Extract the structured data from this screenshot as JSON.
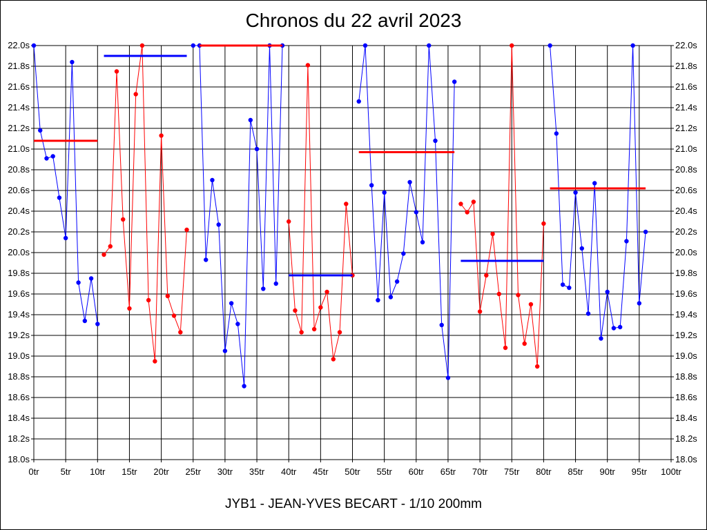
{
  "chart_data": {
    "type": "line",
    "title": "Chronos du 22 avril 2023",
    "subtitle": "JYB1 - JEAN-YVES BECART - 1/10 200mm",
    "xlabel": "",
    "ylabel": "",
    "xlim": [
      0,
      100
    ],
    "ylim": [
      18.0,
      22.0
    ],
    "grid": true,
    "x_ticks": [
      "0tr",
      "5tr",
      "10tr",
      "15tr",
      "20tr",
      "25tr",
      "30tr",
      "35tr",
      "40tr",
      "45tr",
      "50tr",
      "55tr",
      "60tr",
      "65tr",
      "70tr",
      "75tr",
      "80tr",
      "85tr",
      "90tr",
      "95tr",
      "100tr"
    ],
    "y_ticks": [
      "18.0s",
      "18.2s",
      "18.4s",
      "18.6s",
      "18.8s",
      "19.0s",
      "19.2s",
      "19.4s",
      "19.6s",
      "19.8s",
      "20.0s",
      "20.2s",
      "20.4s",
      "20.6s",
      "20.8s",
      "21.0s",
      "21.2s",
      "21.4s",
      "21.6s",
      "21.8s",
      "22.0s"
    ],
    "series": [
      {
        "color": "#0000ff",
        "x": [
          0,
          1,
          2,
          3,
          4,
          5,
          6,
          7,
          8,
          9,
          10
        ],
        "y": [
          22.0,
          21.18,
          20.91,
          20.93,
          20.53,
          20.14,
          21.84,
          19.71,
          19.34,
          19.75,
          19.31
        ],
        "average": 21.08
      },
      {
        "color": "#ff0000",
        "x": [
          11,
          12,
          13,
          14,
          15,
          16,
          17,
          18,
          19,
          20,
          21,
          22,
          23,
          24
        ],
        "y": [
          19.98,
          20.06,
          21.75,
          20.32,
          19.46,
          21.53,
          22.0,
          19.54,
          18.95,
          21.13,
          19.58,
          19.39,
          19.23,
          20.22
        ],
        "average": 21.9
      },
      {
        "color": "#0000ff",
        "x": [
          25,
          26,
          27,
          28,
          29,
          30,
          31,
          32,
          33,
          34,
          35,
          36,
          37,
          38,
          39
        ],
        "y": [
          22.0,
          22.0,
          19.93,
          20.7,
          20.27,
          19.05,
          19.51,
          19.31,
          18.71,
          21.28,
          21.0,
          19.65,
          22.0,
          19.7,
          22.0
        ],
        "average": 22.0
      },
      {
        "color": "#ff0000",
        "x": [
          40,
          41,
          42,
          43,
          44,
          45,
          46,
          47,
          48,
          49,
          50
        ],
        "y": [
          20.3,
          19.44,
          19.23,
          21.81,
          19.26,
          19.47,
          19.62,
          18.97,
          19.23,
          20.47,
          19.78
        ],
        "average": 19.78
      },
      {
        "color": "#0000ff",
        "x": [
          51,
          52,
          53,
          54,
          55,
          56,
          57,
          58,
          59,
          60,
          61,
          62,
          63,
          64,
          65,
          66
        ],
        "y": [
          21.46,
          22.0,
          20.65,
          19.54,
          20.58,
          19.57,
          19.72,
          19.99,
          20.68,
          20.39,
          20.1,
          22.0,
          21.08,
          19.3,
          18.79,
          21.65
        ],
        "average": 20.97
      },
      {
        "color": "#ff0000",
        "x": [
          67,
          68,
          69,
          70,
          71,
          72,
          73,
          74,
          75,
          76,
          77,
          78,
          79,
          80
        ],
        "y": [
          20.47,
          20.39,
          20.49,
          19.43,
          19.78,
          20.18,
          19.6,
          19.08,
          22.0,
          19.59,
          19.12,
          19.5,
          18.9,
          20.28
        ],
        "average": 19.92
      },
      {
        "color": "#0000ff",
        "x": [
          81,
          82,
          83,
          84,
          85,
          86,
          87,
          88,
          89,
          90,
          91,
          92,
          93,
          94,
          95,
          96
        ],
        "y": [
          22.0,
          21.15,
          19.69,
          19.66,
          20.58,
          20.04,
          19.41,
          20.67,
          19.17,
          19.62,
          19.27,
          19.28,
          20.11,
          22.0,
          19.51,
          20.2
        ],
        "average": 20.62
      }
    ],
    "average_lines": [
      {
        "color": "#ff0000",
        "x": [
          0,
          10
        ],
        "y": 21.08
      },
      {
        "color": "#0000ff",
        "x": [
          11,
          24
        ],
        "y": 21.9
      },
      {
        "color": "#ff0000",
        "x": [
          26,
          39
        ],
        "y": 22.0
      },
      {
        "color": "#0000ff",
        "x": [
          40,
          50
        ],
        "y": 19.78
      },
      {
        "color": "#ff0000",
        "x": [
          51,
          66
        ],
        "y": 20.97
      },
      {
        "color": "#0000ff",
        "x": [
          67,
          80
        ],
        "y": 19.92
      },
      {
        "color": "#ff0000",
        "x": [
          81,
          96
        ],
        "y": 20.62
      }
    ]
  }
}
